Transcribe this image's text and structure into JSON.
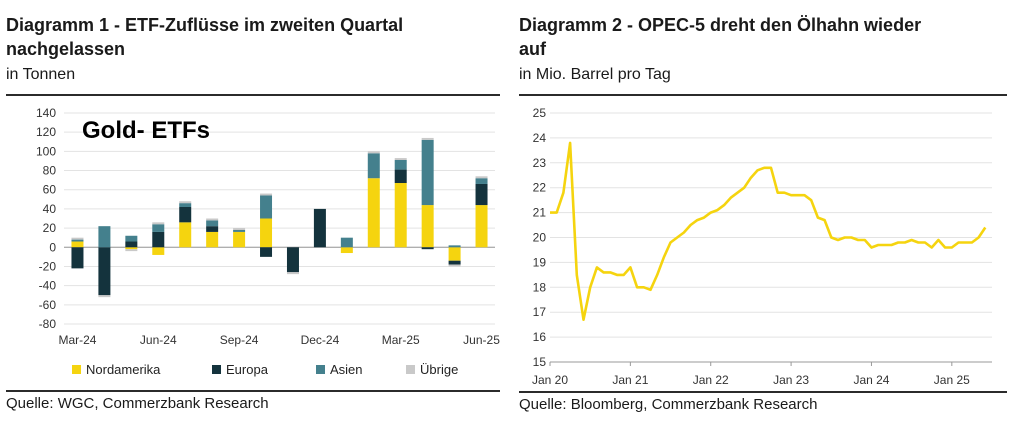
{
  "chart_data": [
    {
      "type": "bar",
      "stacked": true,
      "title": "Diagramm 1 - ETF-Zuflüsse im zweiten Quartal nachgelassen",
      "title_lines": [
        "Diagramm 1 - ETF-Zuflüsse im zweiten Quartal",
        "nachgelassen"
      ],
      "subtitle": "in Tonnen",
      "annotation": "Gold- ETFs",
      "source": "Quelle: WGC, Commerzbank Research",
      "ylim": [
        -80,
        140
      ],
      "yticks": [
        -80,
        -60,
        -40,
        -20,
        0,
        20,
        40,
        60,
        80,
        100,
        120,
        140
      ],
      "x_tick_labels": [
        "Mar-24",
        "Jun-24",
        "Sep-24",
        "Dec-24",
        "Mar-25",
        "Jun-25"
      ],
      "categories": [
        "Mar-24",
        "Apr-24",
        "May-24",
        "Jun-24",
        "Jul-24",
        "Aug-24",
        "Sep-24",
        "Oct-24",
        "Nov-24",
        "Dec-24",
        "Jan-25",
        "Feb-25",
        "Mar-25",
        "Apr-25",
        "May-25",
        "Jun-25"
      ],
      "grid": true,
      "legend_position": "bottom",
      "series": [
        {
          "name": "Nordamerika",
          "color": "#f5d40f",
          "values": [
            6,
            0,
            -2,
            -8,
            26,
            16,
            16,
            30,
            0,
            0,
            -6,
            72,
            67,
            44,
            -14,
            44
          ]
        },
        {
          "name": "Europa",
          "color": "#14333d",
          "values": [
            -22,
            -50,
            6,
            16,
            16,
            6,
            0,
            -10,
            -26,
            40,
            0,
            0,
            14,
            -2,
            -4,
            22
          ]
        },
        {
          "name": "Asien",
          "color": "#44808d",
          "values": [
            2,
            22,
            6,
            8,
            4,
            6,
            2,
            24,
            0,
            0,
            10,
            26,
            10,
            68,
            2,
            6
          ]
        },
        {
          "name": "Übrige",
          "color": "#c9c9c9",
          "values": [
            2,
            -2,
            -2,
            2,
            2,
            2,
            2,
            2,
            -2,
            0,
            0,
            2,
            2,
            2,
            -2,
            2
          ]
        }
      ]
    },
    {
      "type": "line",
      "title": "Diagramm 2 - OPEC-5 dreht den Ölhahn wieder auf",
      "title_lines": [
        "Diagramm 2 - OPEC-5 dreht den Ölhahn wieder",
        "auf"
      ],
      "subtitle": "in Mio. Barrel pro Tag",
      "source": "Quelle: Bloomberg, Commerzbank Research",
      "ylim": [
        15,
        25
      ],
      "yticks": [
        15,
        16,
        17,
        18,
        19,
        20,
        21,
        22,
        23,
        24,
        25
      ],
      "xlim": [
        "2020-01",
        "2025-07"
      ],
      "x_tick_labels": [
        "Jan 20",
        "Jan 21",
        "Jan 22",
        "Jan 23",
        "Jan 24",
        "Jan 25"
      ],
      "x_tick_dates": [
        "2020-01",
        "2021-01",
        "2022-01",
        "2023-01",
        "2024-01",
        "2025-01"
      ],
      "grid": true,
      "series": [
        {
          "name": "OPEC-5",
          "color": "#f5d40f",
          "x": [
            "2020-01",
            "2020-02",
            "2020-03",
            "2020-04",
            "2020-05",
            "2020-06",
            "2020-07",
            "2020-08",
            "2020-09",
            "2020-10",
            "2020-11",
            "2020-12",
            "2021-01",
            "2021-02",
            "2021-03",
            "2021-04",
            "2021-05",
            "2021-06",
            "2021-07",
            "2021-08",
            "2021-09",
            "2021-10",
            "2021-11",
            "2021-12",
            "2022-01",
            "2022-02",
            "2022-03",
            "2022-04",
            "2022-05",
            "2022-06",
            "2022-07",
            "2022-08",
            "2022-09",
            "2022-10",
            "2022-11",
            "2022-12",
            "2023-01",
            "2023-02",
            "2023-03",
            "2023-04",
            "2023-05",
            "2023-06",
            "2023-07",
            "2023-08",
            "2023-09",
            "2023-10",
            "2023-11",
            "2023-12",
            "2024-01",
            "2024-02",
            "2024-03",
            "2024-04",
            "2024-05",
            "2024-06",
            "2024-07",
            "2024-08",
            "2024-09",
            "2024-10",
            "2024-11",
            "2024-12",
            "2025-01",
            "2025-02",
            "2025-03",
            "2025-04",
            "2025-05",
            "2025-06"
          ],
          "values": [
            21.0,
            21.0,
            21.8,
            23.8,
            18.5,
            16.7,
            18.0,
            18.8,
            18.6,
            18.6,
            18.5,
            18.5,
            18.8,
            18.0,
            18.0,
            17.9,
            18.5,
            19.2,
            19.8,
            20.0,
            20.2,
            20.5,
            20.7,
            20.8,
            21.0,
            21.1,
            21.3,
            21.6,
            21.8,
            22.0,
            22.4,
            22.7,
            22.8,
            22.8,
            21.8,
            21.8,
            21.7,
            21.7,
            21.7,
            21.5,
            20.8,
            20.7,
            20.0,
            19.9,
            20.0,
            20.0,
            19.9,
            19.9,
            19.6,
            19.7,
            19.7,
            19.7,
            19.8,
            19.8,
            19.9,
            19.8,
            19.8,
            19.6,
            19.9,
            19.6,
            19.6,
            19.8,
            19.8,
            19.8,
            20.0,
            20.4
          ]
        }
      ]
    }
  ]
}
